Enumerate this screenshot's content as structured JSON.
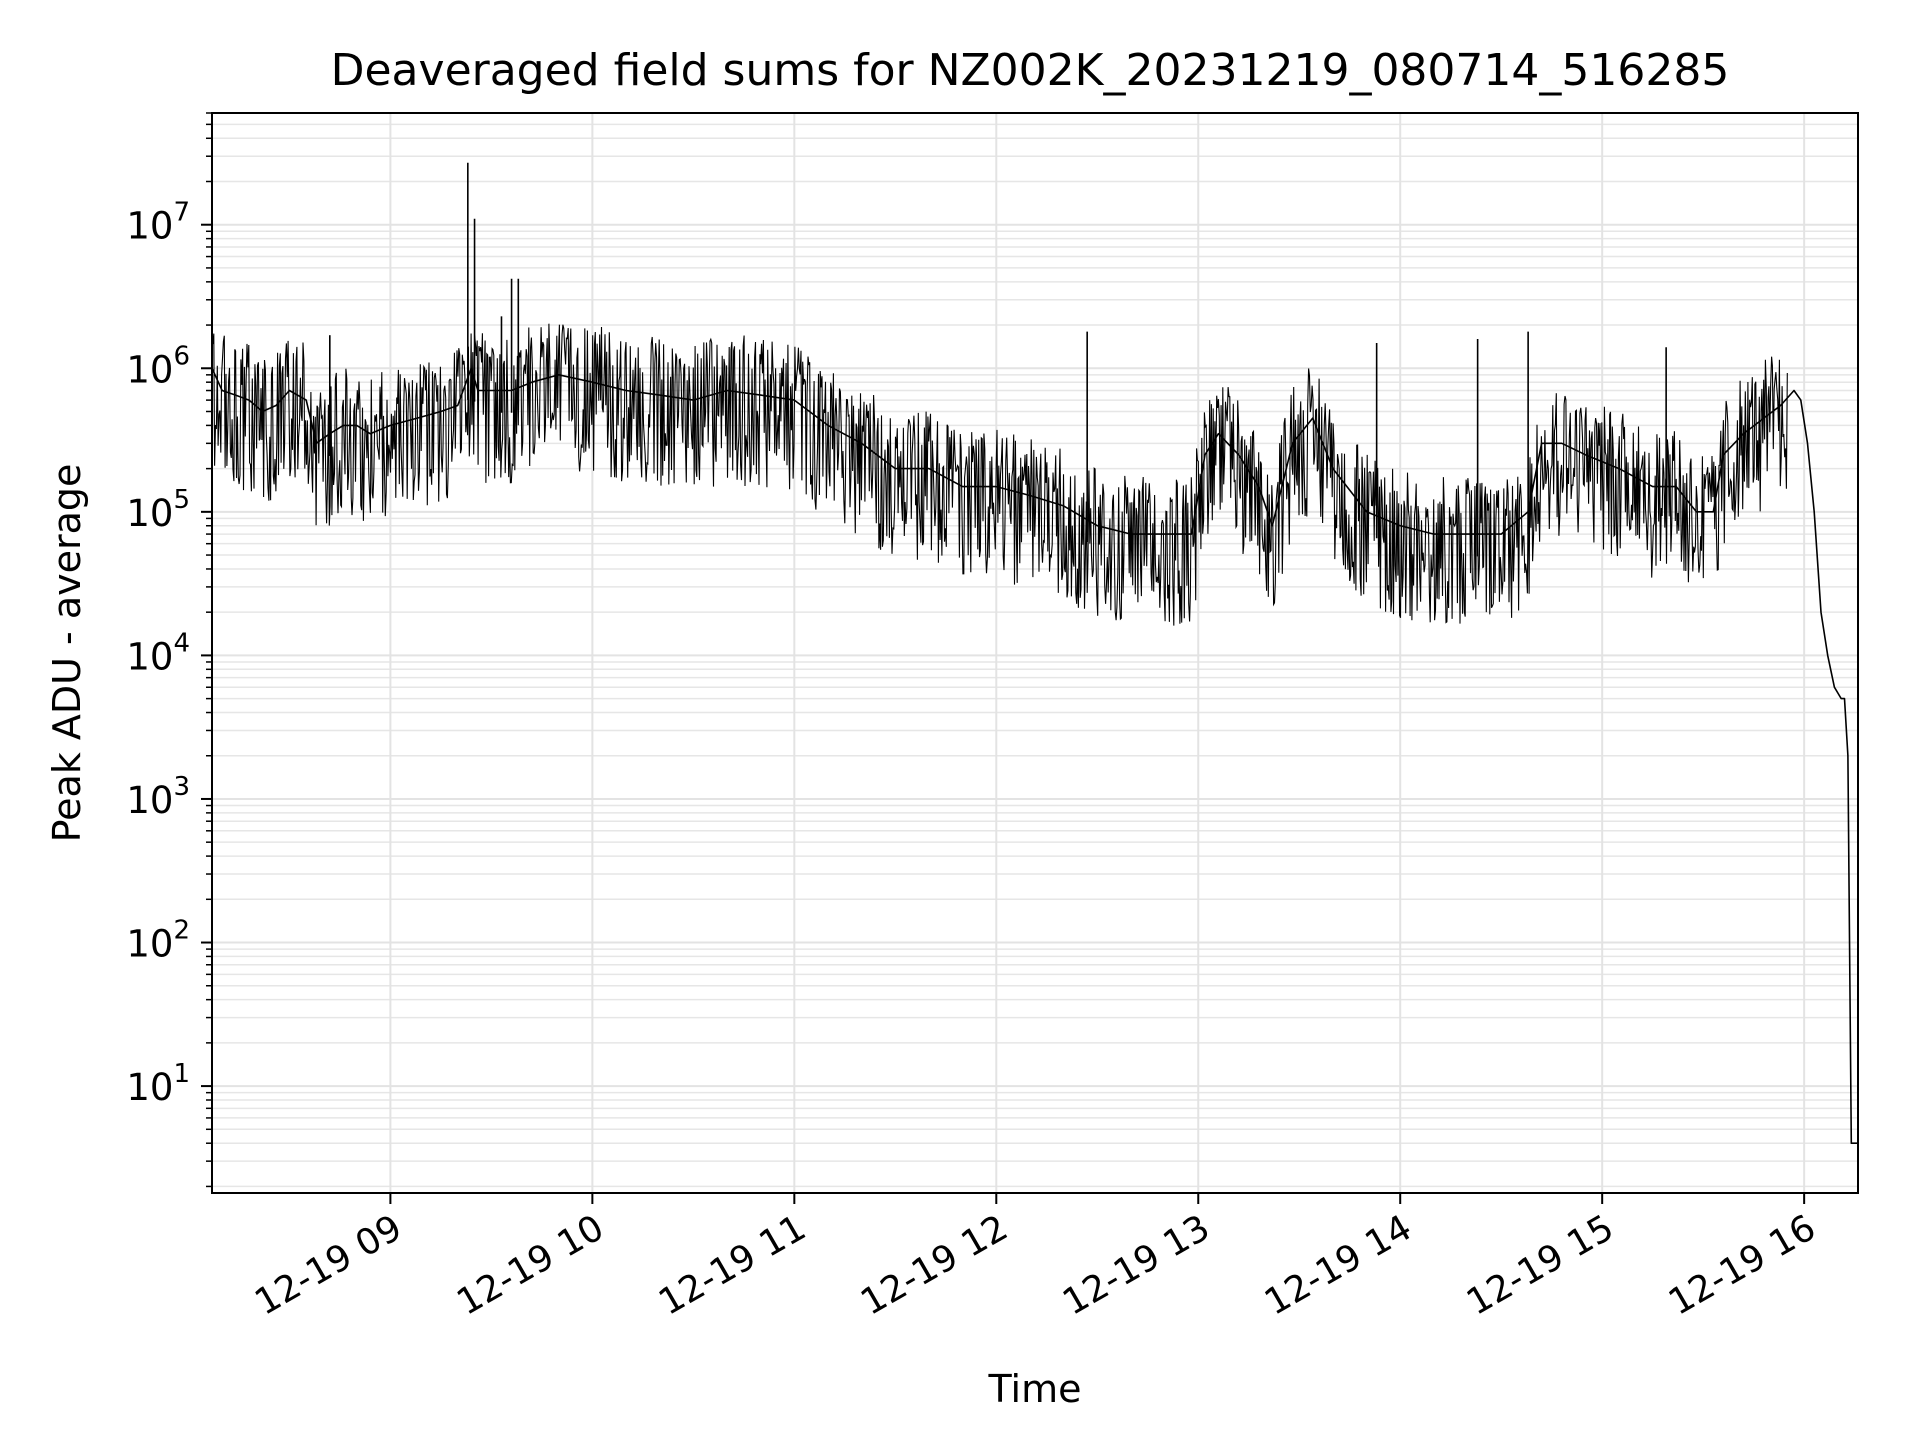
{
  "chart_data": {
    "type": "line",
    "title": "Deaveraged field sums for NZ002K_20231219_080714_516285",
    "xlabel": "Time",
    "ylabel": "Peak ADU - average",
    "yscale": "log",
    "xlim": [
      "2023-12-19 08:07",
      "2023-12-19 16:16"
    ],
    "ylim": [
      1.8,
      60000000
    ],
    "grid": true,
    "x_ticks": [
      {
        "value": "2023-12-19 09:00",
        "label": "12-19 09"
      },
      {
        "value": "2023-12-19 10:00",
        "label": "12-19 10"
      },
      {
        "value": "2023-12-19 11:00",
        "label": "12-19 11"
      },
      {
        "value": "2023-12-19 12:00",
        "label": "12-19 12"
      },
      {
        "value": "2023-12-19 13:00",
        "label": "12-19 13"
      },
      {
        "value": "2023-12-19 14:00",
        "label": "12-19 14"
      },
      {
        "value": "2023-12-19 15:00",
        "label": "12-19 15"
      },
      {
        "value": "2023-12-19 16:00",
        "label": "12-19 16"
      }
    ],
    "y_ticks": [
      {
        "value": 10,
        "base": "10",
        "exp": "1"
      },
      {
        "value": 100,
        "base": "10",
        "exp": "2"
      },
      {
        "value": 1000,
        "base": "10",
        "exp": "3"
      },
      {
        "value": 10000,
        "base": "10",
        "exp": "4"
      },
      {
        "value": 100000,
        "base": "10",
        "exp": "5"
      },
      {
        "value": 1000000,
        "base": "10",
        "exp": "6"
      },
      {
        "value": 10000000,
        "base": "10",
        "exp": "7"
      }
    ],
    "line_color": "#000000",
    "series": [
      {
        "x": [
          "2023-12-19 08:07",
          "2023-12-19 08:10",
          "2023-12-19 08:14",
          "2023-12-19 08:18",
          "2023-12-19 08:22",
          "2023-12-19 08:26",
          "2023-12-19 08:30",
          "2023-12-19 08:35",
          "2023-12-19 08:38",
          "2023-12-19 08:42",
          "2023-12-19 08:46",
          "2023-12-19 08:50",
          "2023-12-19 08:54",
          "2023-12-19 09:00",
          "2023-12-19 09:08",
          "2023-12-19 09:15",
          "2023-12-19 09:20",
          "2023-12-19 09:24",
          "2023-12-19 09:26",
          "2023-12-19 09:30",
          "2023-12-19 09:36",
          "2023-12-19 09:42",
          "2023-12-19 09:50",
          "2023-12-19 10:00",
          "2023-12-19 10:10",
          "2023-12-19 10:20",
          "2023-12-19 10:30",
          "2023-12-19 10:40",
          "2023-12-19 10:50",
          "2023-12-19 11:00",
          "2023-12-19 11:10",
          "2023-12-19 11:20",
          "2023-12-19 11:30",
          "2023-12-19 11:40",
          "2023-12-19 11:50",
          "2023-12-19 12:00",
          "2023-12-19 12:10",
          "2023-12-19 12:20",
          "2023-12-19 12:30",
          "2023-12-19 12:40",
          "2023-12-19 12:50",
          "2023-12-19 12:58",
          "2023-12-19 13:02",
          "2023-12-19 13:06",
          "2023-12-19 13:12",
          "2023-12-19 13:18",
          "2023-12-19 13:22",
          "2023-12-19 13:28",
          "2023-12-19 13:34",
          "2023-12-19 13:40",
          "2023-12-19 13:50",
          "2023-12-19 14:00",
          "2023-12-19 14:10",
          "2023-12-19 14:20",
          "2023-12-19 14:30",
          "2023-12-19 14:38",
          "2023-12-19 14:42",
          "2023-12-19 14:48",
          "2023-12-19 14:55",
          "2023-12-19 15:05",
          "2023-12-19 15:15",
          "2023-12-19 15:22",
          "2023-12-19 15:28",
          "2023-12-19 15:33",
          "2023-12-19 15:36",
          "2023-12-19 15:42",
          "2023-12-19 15:48",
          "2023-12-19 15:53",
          "2023-12-19 15:57",
          "2023-12-19 15:59",
          "2023-12-19 16:01",
          "2023-12-19 16:03",
          "2023-12-19 16:05",
          "2023-12-19 16:07",
          "2023-12-19 16:09",
          "2023-12-19 16:11",
          "2023-12-19 16:12",
          "2023-12-19 16:13",
          "2023-12-19 16:14",
          "2023-12-19 16:16"
        ],
        "y": [
          1000000,
          700000,
          650000,
          600000,
          500000,
          550000,
          700000,
          600000,
          300000,
          350000,
          400000,
          400000,
          350000,
          400000,
          450000,
          500000,
          550000,
          1000000,
          700000,
          700000,
          700000,
          800000,
          900000,
          800000,
          700000,
          650000,
          600000,
          700000,
          650000,
          600000,
          400000,
          300000,
          200000,
          200000,
          150000,
          150000,
          130000,
          110000,
          80000,
          70000,
          70000,
          70000,
          250000,
          350000,
          250000,
          150000,
          80000,
          300000,
          450000,
          200000,
          100000,
          80000,
          70000,
          70000,
          70000,
          100000,
          300000,
          300000,
          250000,
          200000,
          150000,
          150000,
          100000,
          100000,
          250000,
          350000,
          450000,
          550000,
          700000,
          600000,
          300000,
          100000,
          20000,
          10000,
          6000,
          5000,
          5000,
          2000,
          4,
          4
        ]
      }
    ],
    "spikes": [
      {
        "x": "2023-12-19 08:42",
        "y": 1700000
      },
      {
        "x": "2023-12-19 09:23",
        "y": 27000000
      },
      {
        "x": "2023-12-19 09:25",
        "y": 11000000
      },
      {
        "x": "2023-12-19 09:33",
        "y": 2300000
      },
      {
        "x": "2023-12-19 09:36",
        "y": 4200000
      },
      {
        "x": "2023-12-19 09:38",
        "y": 4200000
      },
      {
        "x": "2023-12-19 12:27",
        "y": 1800000
      },
      {
        "x": "2023-12-19 13:53",
        "y": 1500000
      },
      {
        "x": "2023-12-19 14:23",
        "y": 1600000
      },
      {
        "x": "2023-12-19 14:38",
        "y": 1800000
      },
      {
        "x": "2023-12-19 15:19",
        "y": 1400000
      }
    ]
  }
}
